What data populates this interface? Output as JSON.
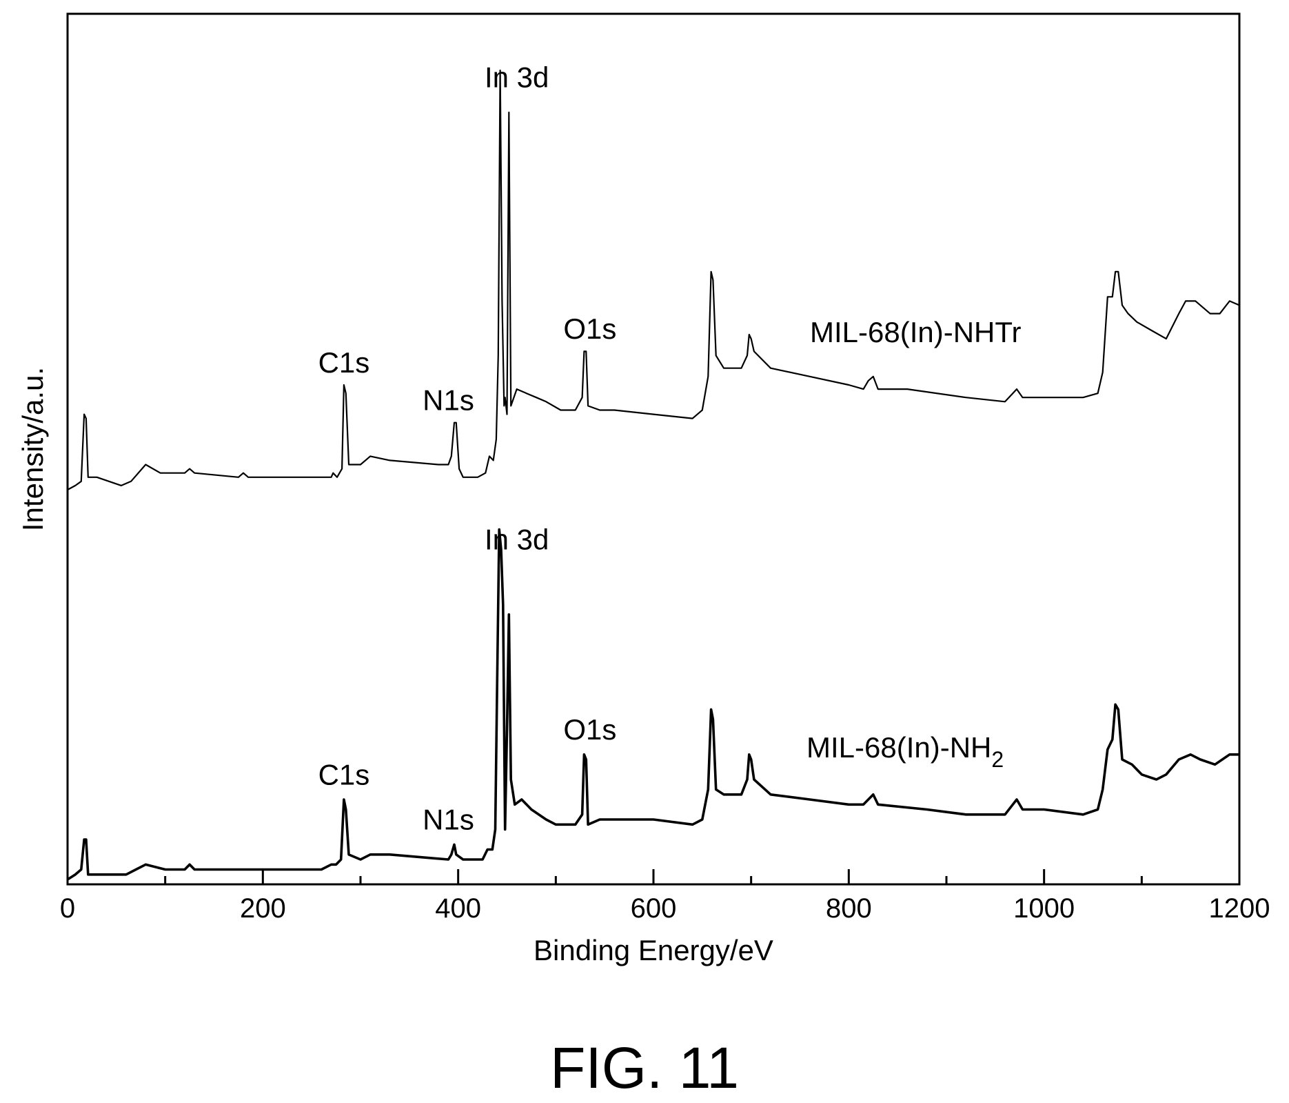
{
  "figure_label": "FIG. 11",
  "chart_data": {
    "type": "line",
    "xlabel": "Binding Energy/eV",
    "ylabel": "Intensity/a.u.",
    "xlim": [
      0,
      1200
    ],
    "x_ticks": [
      "0",
      "200",
      "400",
      "600",
      "800",
      "1000",
      "1200"
    ],
    "y_ticks": [],
    "grid": false,
    "series": [
      {
        "name": "MIL-68(In)-NHTr",
        "name_main": "MIL-68(In)-NHTr",
        "name_sub": "",
        "points": [
          [
            0,
            0.0
          ],
          [
            8,
            0.01
          ],
          [
            14,
            0.02
          ],
          [
            17,
            0.18
          ],
          [
            19,
            0.17
          ],
          [
            21,
            0.03
          ],
          [
            30,
            0.03
          ],
          [
            55,
            0.01
          ],
          [
            65,
            0.02
          ],
          [
            80,
            0.06
          ],
          [
            95,
            0.04
          ],
          [
            120,
            0.04
          ],
          [
            125,
            0.05
          ],
          [
            130,
            0.04
          ],
          [
            175,
            0.03
          ],
          [
            180,
            0.04
          ],
          [
            185,
            0.03
          ],
          [
            270,
            0.03
          ],
          [
            272,
            0.04
          ],
          [
            276,
            0.03
          ],
          [
            281,
            0.05
          ],
          [
            283,
            0.25
          ],
          [
            285,
            0.23
          ],
          [
            288,
            0.06
          ],
          [
            300,
            0.06
          ],
          [
            310,
            0.08
          ],
          [
            330,
            0.07
          ],
          [
            380,
            0.06
          ],
          [
            390,
            0.06
          ],
          [
            393,
            0.08
          ],
          [
            396,
            0.16
          ],
          [
            398,
            0.16
          ],
          [
            401,
            0.05
          ],
          [
            405,
            0.03
          ],
          [
            420,
            0.03
          ],
          [
            428,
            0.04
          ],
          [
            432,
            0.08
          ],
          [
            436,
            0.07
          ],
          [
            439,
            0.12
          ],
          [
            441,
            0.32
          ],
          [
            443,
            1.0
          ],
          [
            445,
            0.45
          ],
          [
            447,
            0.2
          ],
          [
            448,
            0.22
          ],
          [
            450,
            0.18
          ],
          [
            452,
            0.9
          ],
          [
            454,
            0.2
          ],
          [
            460,
            0.24
          ],
          [
            470,
            0.23
          ],
          [
            480,
            0.22
          ],
          [
            490,
            0.21
          ],
          [
            505,
            0.19
          ],
          [
            520,
            0.19
          ],
          [
            527,
            0.22
          ],
          [
            529,
            0.33
          ],
          [
            531,
            0.33
          ],
          [
            533,
            0.2
          ],
          [
            545,
            0.19
          ],
          [
            560,
            0.19
          ],
          [
            600,
            0.18
          ],
          [
            640,
            0.17
          ],
          [
            650,
            0.19
          ],
          [
            656,
            0.27
          ],
          [
            659,
            0.52
          ],
          [
            661,
            0.5
          ],
          [
            664,
            0.32
          ],
          [
            672,
            0.29
          ],
          [
            690,
            0.29
          ],
          [
            696,
            0.32
          ],
          [
            698,
            0.37
          ],
          [
            700,
            0.36
          ],
          [
            703,
            0.33
          ],
          [
            720,
            0.29
          ],
          [
            760,
            0.27
          ],
          [
            800,
            0.25
          ],
          [
            815,
            0.24
          ],
          [
            820,
            0.26
          ],
          [
            825,
            0.27
          ],
          [
            830,
            0.24
          ],
          [
            860,
            0.24
          ],
          [
            920,
            0.22
          ],
          [
            960,
            0.21
          ],
          [
            968,
            0.23
          ],
          [
            972,
            0.24
          ],
          [
            978,
            0.22
          ],
          [
            1000,
            0.22
          ],
          [
            1040,
            0.22
          ],
          [
            1055,
            0.23
          ],
          [
            1060,
            0.28
          ],
          [
            1065,
            0.46
          ],
          [
            1070,
            0.46
          ],
          [
            1073,
            0.52
          ],
          [
            1076,
            0.52
          ],
          [
            1080,
            0.44
          ],
          [
            1086,
            0.42
          ],
          [
            1095,
            0.4
          ],
          [
            1110,
            0.38
          ],
          [
            1125,
            0.36
          ],
          [
            1138,
            0.42
          ],
          [
            1145,
            0.45
          ],
          [
            1155,
            0.45
          ],
          [
            1170,
            0.42
          ],
          [
            1180,
            0.42
          ],
          [
            1190,
            0.45
          ],
          [
            1200,
            0.44
          ]
        ],
        "peak_labels": [
          {
            "text": "C1s",
            "x": 283,
            "y": 0.28
          },
          {
            "text": "N1s",
            "x": 390,
            "y": 0.19
          },
          {
            "text": "In 3d",
            "x": 460,
            "y": 0.96
          },
          {
            "text": "O1s",
            "x": 535,
            "y": 0.36
          }
        ]
      },
      {
        "name": "MIL-68(In)-NH2",
        "name_main": "MIL-68(In)-NH",
        "name_sub": "2",
        "points": [
          [
            0,
            0.0
          ],
          [
            8,
            0.01
          ],
          [
            14,
            0.02
          ],
          [
            17,
            0.08
          ],
          [
            19,
            0.08
          ],
          [
            21,
            0.01
          ],
          [
            40,
            0.01
          ],
          [
            60,
            0.01
          ],
          [
            70,
            0.02
          ],
          [
            80,
            0.03
          ],
          [
            100,
            0.02
          ],
          [
            120,
            0.02
          ],
          [
            125,
            0.03
          ],
          [
            130,
            0.02
          ],
          [
            200,
            0.02
          ],
          [
            260,
            0.02
          ],
          [
            270,
            0.03
          ],
          [
            275,
            0.03
          ],
          [
            280,
            0.04
          ],
          [
            283,
            0.16
          ],
          [
            285,
            0.14
          ],
          [
            288,
            0.05
          ],
          [
            300,
            0.04
          ],
          [
            310,
            0.05
          ],
          [
            330,
            0.05
          ],
          [
            390,
            0.04
          ],
          [
            393,
            0.05
          ],
          [
            396,
            0.07
          ],
          [
            398,
            0.05
          ],
          [
            405,
            0.04
          ],
          [
            425,
            0.04
          ],
          [
            430,
            0.06
          ],
          [
            435,
            0.06
          ],
          [
            438,
            0.1
          ],
          [
            440,
            0.4
          ],
          [
            442,
            0.7
          ],
          [
            444,
            0.66
          ],
          [
            446,
            0.55
          ],
          [
            448,
            0.1
          ],
          [
            450,
            0.3
          ],
          [
            452,
            0.53
          ],
          [
            454,
            0.2
          ],
          [
            458,
            0.15
          ],
          [
            465,
            0.16
          ],
          [
            475,
            0.14
          ],
          [
            490,
            0.12
          ],
          [
            500,
            0.11
          ],
          [
            520,
            0.11
          ],
          [
            527,
            0.13
          ],
          [
            529,
            0.25
          ],
          [
            531,
            0.24
          ],
          [
            533,
            0.11
          ],
          [
            545,
            0.12
          ],
          [
            560,
            0.12
          ],
          [
            600,
            0.12
          ],
          [
            640,
            0.11
          ],
          [
            650,
            0.12
          ],
          [
            656,
            0.18
          ],
          [
            659,
            0.34
          ],
          [
            661,
            0.32
          ],
          [
            664,
            0.18
          ],
          [
            672,
            0.17
          ],
          [
            690,
            0.17
          ],
          [
            696,
            0.2
          ],
          [
            698,
            0.25
          ],
          [
            700,
            0.24
          ],
          [
            703,
            0.2
          ],
          [
            720,
            0.17
          ],
          [
            760,
            0.16
          ],
          [
            800,
            0.15
          ],
          [
            815,
            0.15
          ],
          [
            820,
            0.16
          ],
          [
            825,
            0.17
          ],
          [
            830,
            0.15
          ],
          [
            880,
            0.14
          ],
          [
            920,
            0.13
          ],
          [
            960,
            0.13
          ],
          [
            968,
            0.15
          ],
          [
            972,
            0.16
          ],
          [
            978,
            0.14
          ],
          [
            1000,
            0.14
          ],
          [
            1040,
            0.13
          ],
          [
            1055,
            0.14
          ],
          [
            1060,
            0.18
          ],
          [
            1065,
            0.26
          ],
          [
            1070,
            0.28
          ],
          [
            1073,
            0.35
          ],
          [
            1076,
            0.34
          ],
          [
            1080,
            0.24
          ],
          [
            1090,
            0.23
          ],
          [
            1100,
            0.21
          ],
          [
            1115,
            0.2
          ],
          [
            1125,
            0.21
          ],
          [
            1138,
            0.24
          ],
          [
            1150,
            0.25
          ],
          [
            1160,
            0.24
          ],
          [
            1175,
            0.23
          ],
          [
            1190,
            0.25
          ],
          [
            1200,
            0.25
          ]
        ],
        "peak_labels": [
          {
            "text": "C1s",
            "x": 283,
            "y": 0.19
          },
          {
            "text": "N1s",
            "x": 390,
            "y": 0.1
          },
          {
            "text": "In 3d",
            "x": 460,
            "y": 0.66
          },
          {
            "text": "O1s",
            "x": 535,
            "y": 0.28
          }
        ]
      }
    ]
  }
}
